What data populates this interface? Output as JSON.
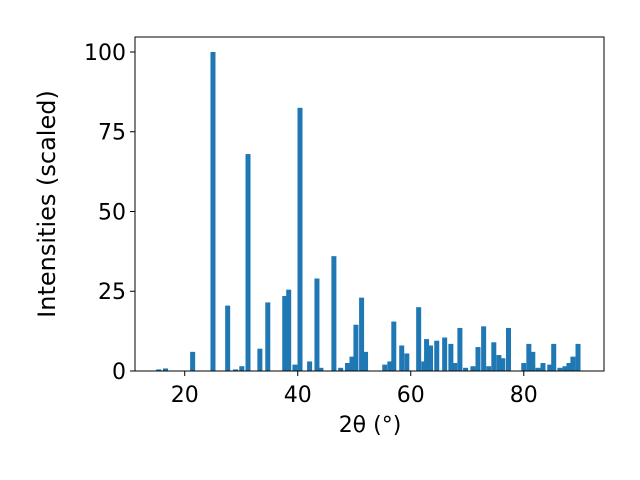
{
  "chart_data": {
    "type": "bar",
    "x_label": "2θ (°)",
    "y_label": "Intensities (scaled)",
    "color": "#1f77b4",
    "x": [
      15.4,
      16.6,
      21.4,
      25.0,
      27.6,
      29.0,
      30.1,
      31.2,
      33.3,
      34.7,
      37.7,
      38.4,
      39.5,
      40.4,
      42.1,
      43.4,
      44.1,
      46.4,
      47.6,
      48.8,
      49.6,
      50.3,
      51.3,
      52.0,
      55.4,
      56.3,
      57.0,
      58.4,
      59.3,
      61.4,
      62.3,
      62.8,
      63.5,
      64.6,
      66.0,
      67.1,
      67.8,
      68.7,
      69.7,
      71.0,
      71.9,
      72.9,
      73.8,
      74.7,
      75.6,
      76.3,
      77.3,
      80.0,
      80.9,
      81.6,
      82.5,
      83.4,
      84.6,
      85.3,
      86.4,
      87.3,
      88.0,
      88.7,
      89.6
    ],
    "values": [
      0.5,
      0.8,
      6,
      100,
      20.5,
      0.5,
      1.5,
      68,
      7,
      21.5,
      23.5,
      25.5,
      2,
      82.5,
      3,
      29,
      1,
      36,
      1,
      2.5,
      4.5,
      14.5,
      23,
      6,
      2,
      3,
      15.5,
      8,
      5.5,
      20,
      3,
      10,
      8,
      9.5,
      10.5,
      8.5,
      2.5,
      13.5,
      1,
      1.5,
      7.5,
      14,
      1.5,
      9,
      5,
      4,
      13.5,
      2.5,
      8.5,
      6,
      1,
      2.5,
      2,
      8.5,
      1,
      1.5,
      2.5,
      4.5,
      8.5
    ],
    "xlim": [
      11.2,
      94.2
    ],
    "ylim": [
      0,
      104.7
    ],
    "xticks": [
      20,
      40,
      60,
      80
    ],
    "yticks": [
      0,
      25,
      50,
      75,
      100
    ]
  }
}
